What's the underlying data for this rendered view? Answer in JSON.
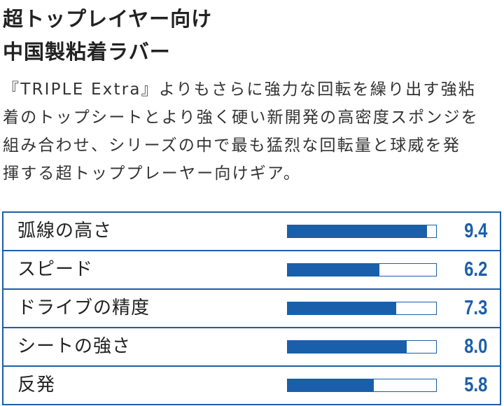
{
  "heading": {
    "line1": "超トップレイヤー向け",
    "line2": "中国製粘着ラバー"
  },
  "description": {
    "lines": [
      "『TRIPLE Extra』よりもさらに強力な回転を繰り出す強粘",
      "着のトップシートとより強く硬い新開発の高密度スポンジを",
      "組み合わせ、シリーズの中で最も猛烈な回転量と球威を発",
      "揮する超トッププレーヤー向けギア。"
    ]
  },
  "ratings": {
    "max": 10,
    "accent_color": "#1a5faa",
    "items": [
      {
        "label": "弧線の高さ",
        "value": "9.4",
        "fill": 0.94
      },
      {
        "label": "スピード",
        "value": "6.2",
        "fill": 0.62
      },
      {
        "label": "ドライブの精度",
        "value": "7.3",
        "fill": 0.73
      },
      {
        "label": "シートの強さ",
        "value": "8.0",
        "fill": 0.8
      },
      {
        "label": "反発",
        "value": "5.8",
        "fill": 0.58
      }
    ]
  }
}
